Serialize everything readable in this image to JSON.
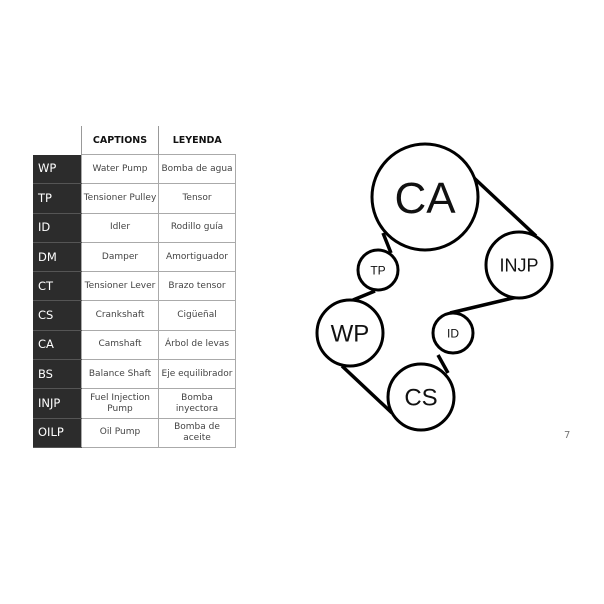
{
  "table": {
    "headers": {
      "captions": "CAPTIONS",
      "leyenda": "LEYENDA"
    },
    "rows": [
      {
        "code": "WP",
        "caption": "Water Pump",
        "leyenda": "Bomba de agua"
      },
      {
        "code": "TP",
        "caption": "Tensioner Pulley",
        "leyenda": "Tensor"
      },
      {
        "code": "ID",
        "caption": "Idler",
        "leyenda": "Rodillo guía"
      },
      {
        "code": "DM",
        "caption": "Damper",
        "leyenda": "Amortiguador"
      },
      {
        "code": "CT",
        "caption": "Tensioner Lever",
        "leyenda": "Brazo tensor"
      },
      {
        "code": "CS",
        "caption": "Crankshaft",
        "leyenda": "Cigüeñal"
      },
      {
        "code": "CA",
        "caption": "Camshaft",
        "leyenda": "Árbol de levas"
      },
      {
        "code": "BS",
        "caption": "Balance Shaft",
        "leyenda": "Eje equilibrador"
      },
      {
        "code": "INJP",
        "caption": "Fuel Injection Pump",
        "leyenda": "Bomba inyectora"
      },
      {
        "code": "OILP",
        "caption": "Oil Pump",
        "leyenda": "Bomba de aceite"
      }
    ]
  },
  "diagram": {
    "pulleys": [
      "CA",
      "INJP",
      "TP",
      "WP",
      "ID",
      "CS"
    ]
  },
  "page_number": "7"
}
